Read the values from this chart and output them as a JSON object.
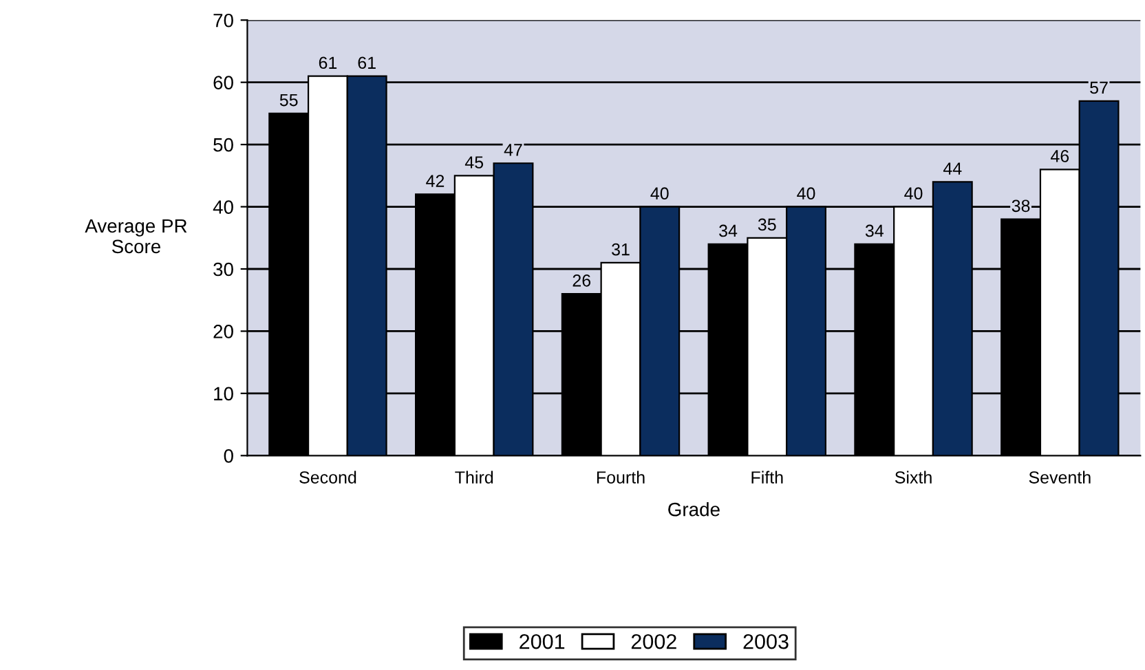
{
  "chart_data": {
    "type": "bar",
    "xlabel": "Grade",
    "ylabel": "Average PR\nScore",
    "categories": [
      "Second",
      "Third",
      "Fourth",
      "Fifth",
      "Sixth",
      "Seventh"
    ],
    "series": [
      {
        "name": "2001",
        "color": "#000000",
        "values": [
          55,
          42,
          26,
          34,
          34,
          38
        ]
      },
      {
        "name": "2002",
        "color": "#ffffff",
        "values": [
          61,
          45,
          31,
          35,
          40,
          46
        ]
      },
      {
        "name": "2003",
        "color": "#0b2d5e",
        "values": [
          61,
          47,
          40,
          40,
          44,
          57
        ]
      }
    ],
    "ylim": [
      0,
      70
    ],
    "yticks": [
      0,
      10,
      20,
      30,
      40,
      50,
      60,
      70
    ],
    "grid": "y",
    "legend": "bottom",
    "data_labels": true
  }
}
